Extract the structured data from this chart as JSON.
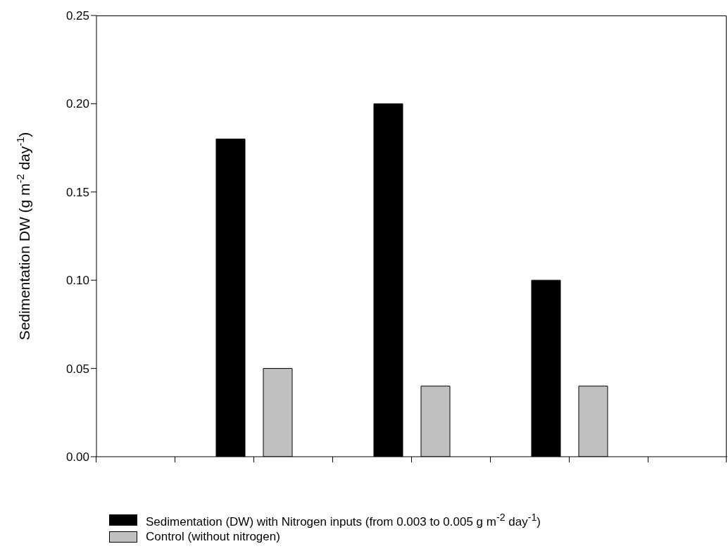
{
  "chart_data": {
    "type": "bar",
    "ylabel": "Sedimentation DW (g m$^{-2}$ day$^{-1}$)",
    "categories": [
      null,
      null,
      null
    ],
    "ylim": [
      0,
      0.25
    ],
    "yticks": [
      {
        "value": 0,
        "label": "0.00"
      },
      {
        "value": 0.05,
        "label": "0.05"
      },
      {
        "value": 0.1,
        "label": "0.10"
      },
      {
        "value": 0.15,
        "label": "0.15"
      },
      {
        "value": 0.2,
        "label": "0.20"
      },
      {
        "value": 0.25,
        "label": "0.25"
      }
    ],
    "series": [
      {
        "name": "Sedimentation (DW) with Nitrogen inputs (from 0.003 to 0.005 g m$^{-2}$ day$^{-1}$)",
        "color": "#000000",
        "values": [
          0.18,
          0.2,
          0.1
        ]
      },
      {
        "name": "Control (without nitrogen)",
        "color": "#c0c0c0",
        "values": [
          0.05,
          0.04,
          0.04
        ]
      }
    ],
    "tick_labels": "y",
    "legend": "bottom"
  }
}
